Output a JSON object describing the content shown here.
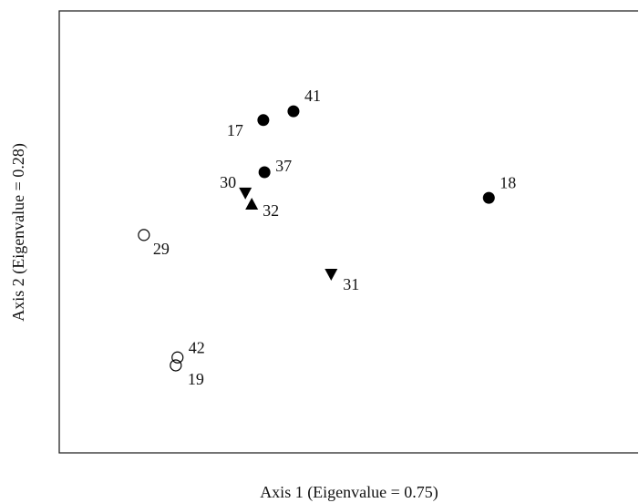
{
  "chart_data": {
    "type": "scatter",
    "x_label": "Axis 1 (Eigenvalue = 0.75)",
    "y_label": "Axis 2 (Eigenvalue = 0.28)",
    "xlim": [
      0,
      100
    ],
    "ylim": [
      0,
      100
    ],
    "labels": [
      "17",
      "41",
      "37",
      "18",
      "30",
      "32",
      "29",
      "31",
      "42",
      "19"
    ],
    "x": [
      35.2,
      40.4,
      35.4,
      74.1,
      32.1,
      33.2,
      14.6,
      46.9,
      20.4,
      20.1
    ],
    "y": [
      75.3,
      77.3,
      63.5,
      57.7,
      58.8,
      56.3,
      49.3,
      40.4,
      21.6,
      19.8
    ],
    "markers": [
      "filled-circle",
      "filled-circle",
      "filled-circle",
      "filled-circle",
      "down-triangle",
      "up-triangle",
      "open-circle",
      "down-triangle",
      "open-circle",
      "open-circle"
    ],
    "color": "#000000"
  }
}
